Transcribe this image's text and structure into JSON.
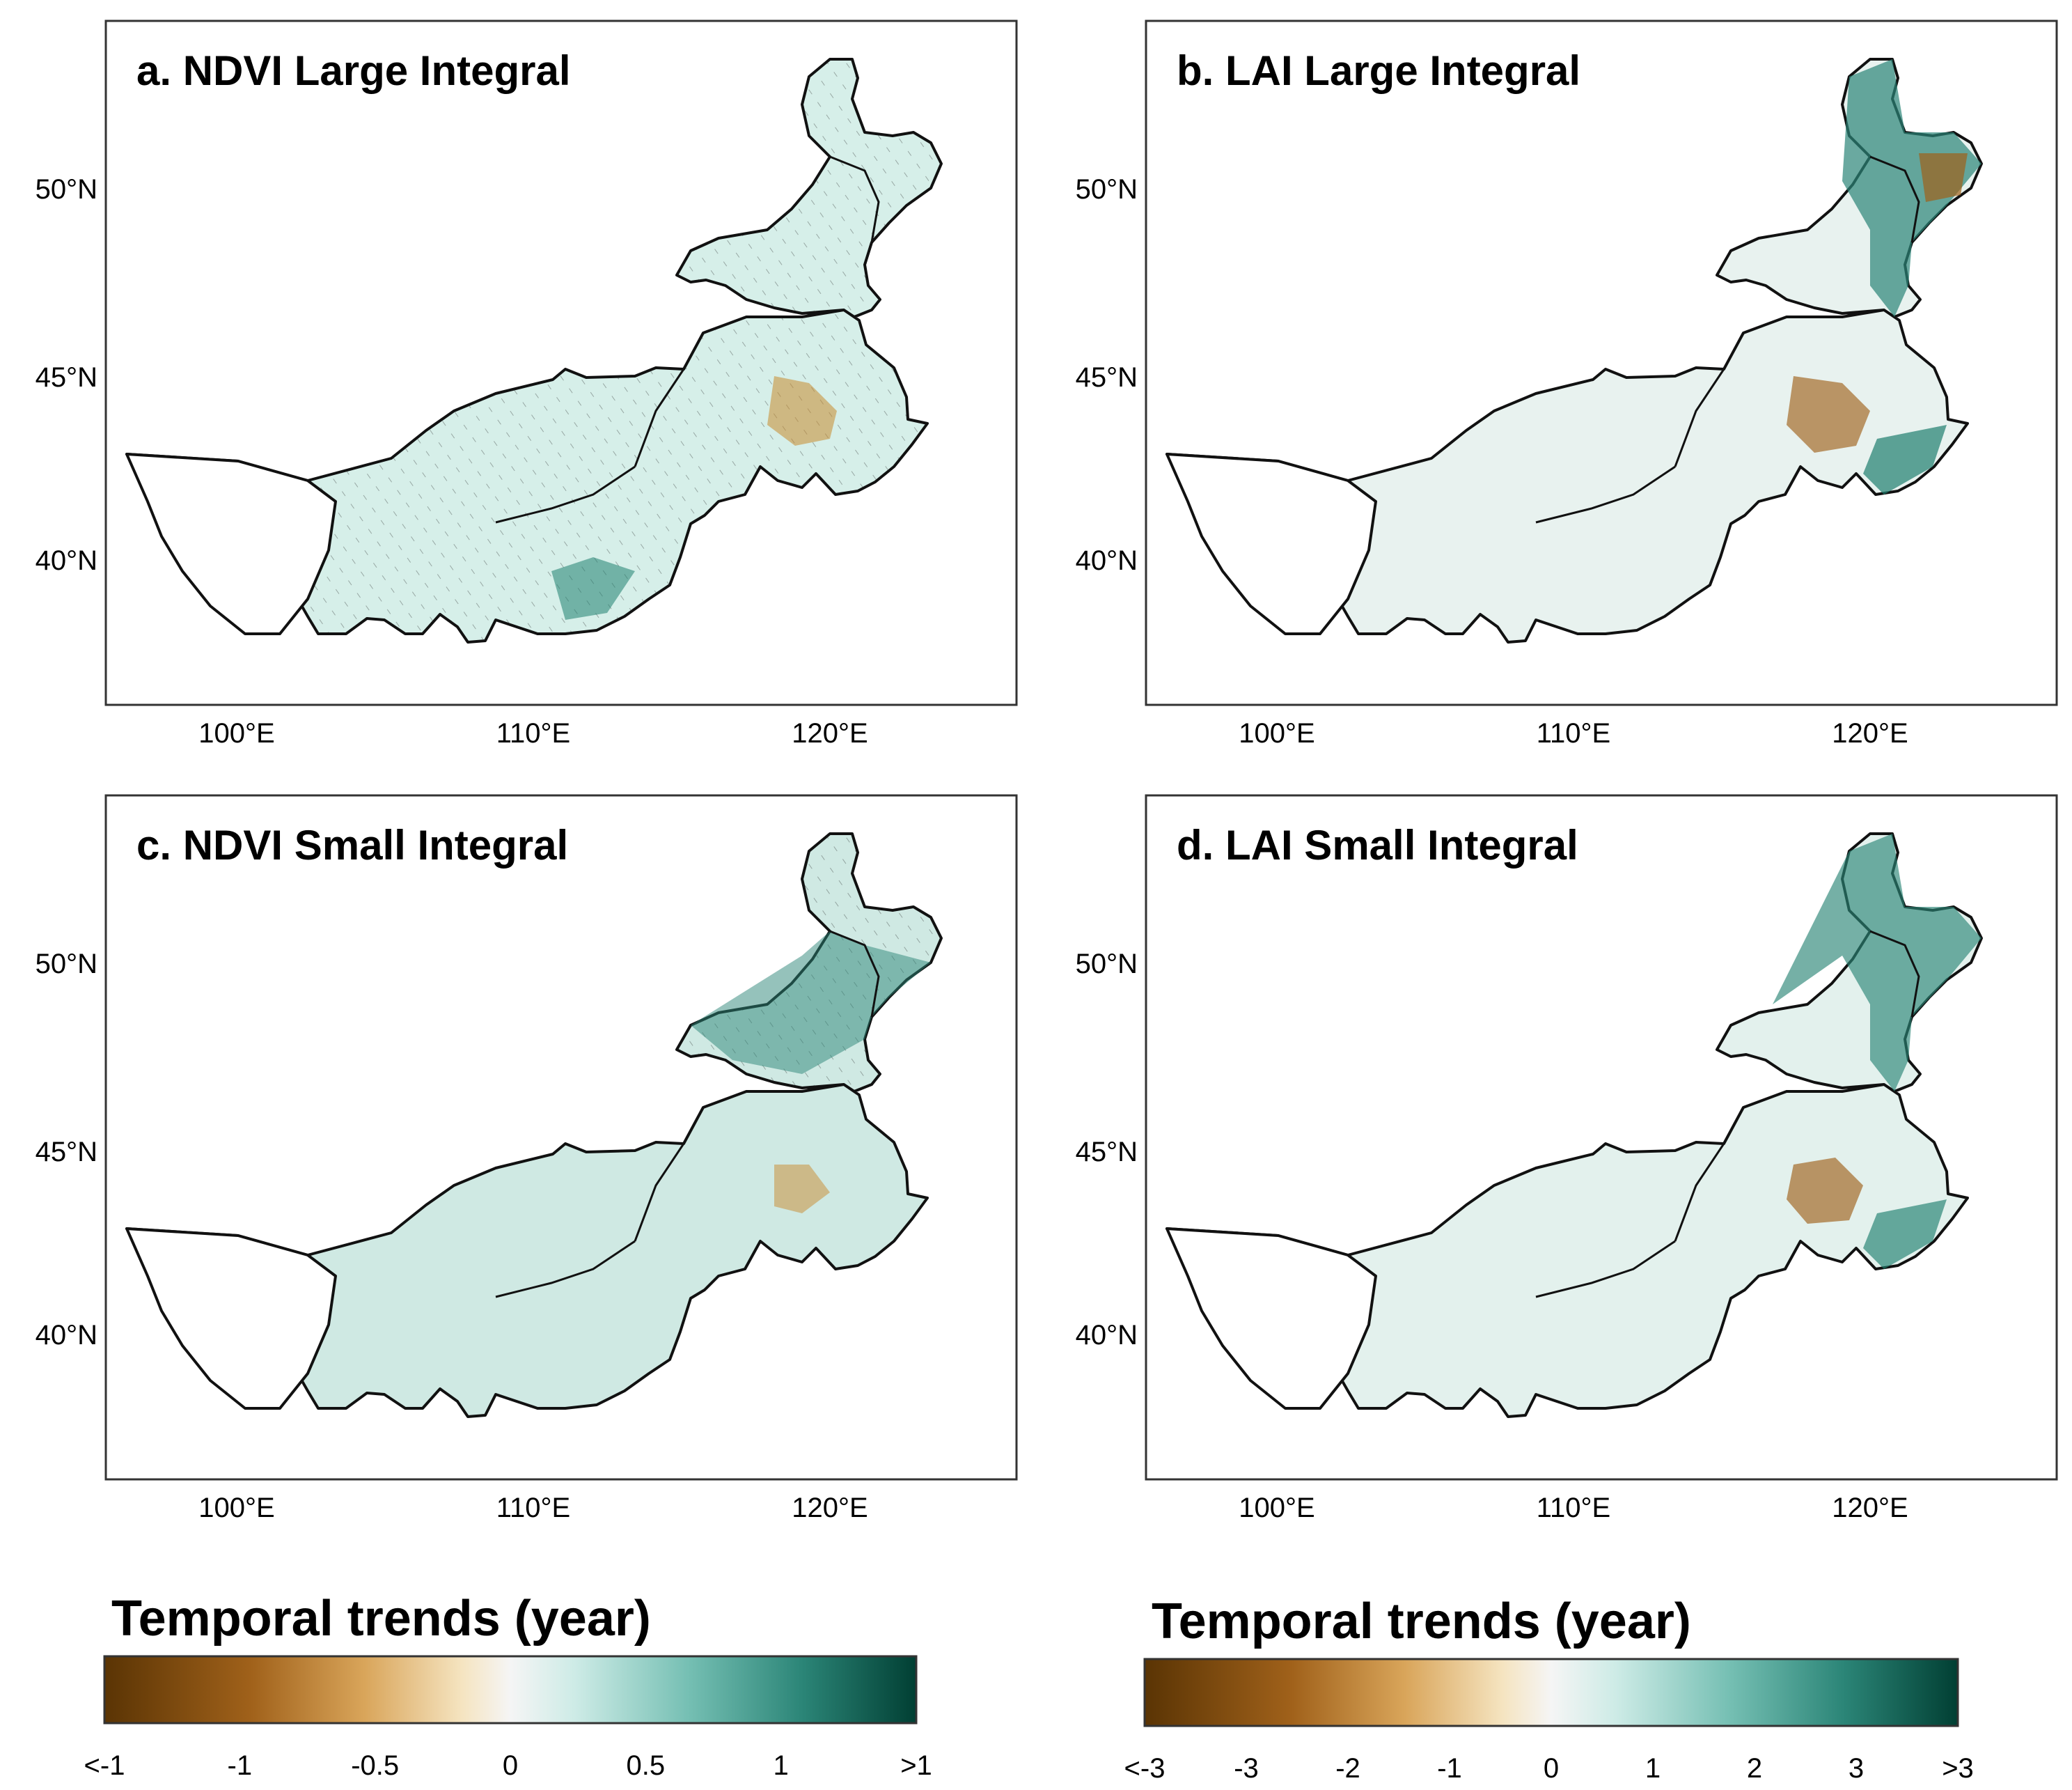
{
  "figure": {
    "panels": [
      {
        "id": "a",
        "title": "a. NDVI Large Integral",
        "variable": "NDVI",
        "integral": "Large"
      },
      {
        "id": "b",
        "title": "b. LAI Large Integral",
        "variable": "LAI",
        "integral": "Large"
      },
      {
        "id": "c",
        "title": "c. NDVI Small Integral",
        "variable": "NDVI",
        "integral": "Small"
      },
      {
        "id": "d",
        "title": "d. LAI Small Integral",
        "variable": "LAI",
        "integral": "Small"
      }
    ],
    "lon_ticks": [
      "100°E",
      "110°E",
      "120°E"
    ],
    "lat_ticks": [
      "50°N",
      "45°N",
      "40°N"
    ],
    "colorbars": [
      {
        "title": "Temporal trends (year)",
        "ticks": [
          "<-1",
          "-1",
          "-0.5",
          "0",
          "0.5",
          "1",
          ">1"
        ],
        "range": [
          -1,
          1
        ]
      },
      {
        "title": "Temporal trends (year)",
        "ticks": [
          "<-3",
          "-3",
          "-2",
          "-1",
          "0",
          "1",
          "2",
          "3",
          ">3"
        ],
        "range": [
          -3,
          3
        ]
      }
    ],
    "colors": {
      "negative_strong": "#5a3404",
      "negative_mid": "#c98a2e",
      "negative_light": "#f3dfb4",
      "neutral": "#f5f5f5",
      "positive_light": "#bfe6df",
      "positive_mid": "#4aa597",
      "positive_strong": "#014a3c"
    }
  }
}
